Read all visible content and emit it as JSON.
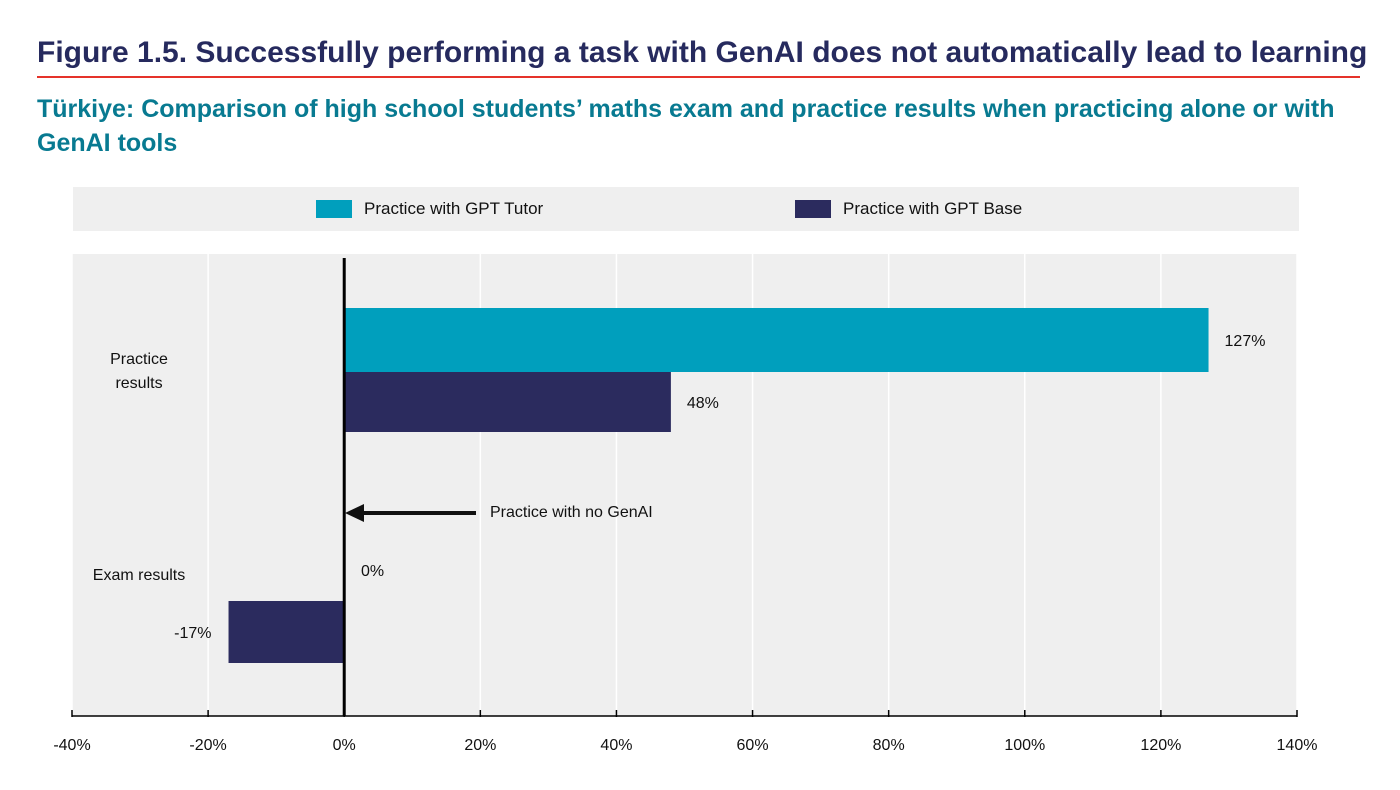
{
  "figure": {
    "title": "Figure 1.5. Successfully performing a task with GenAI does not automatically lead to learning",
    "subtitle": "Türkiye: Comparison of high school students’ maths exam and practice results when practicing alone or with GenAI tools"
  },
  "colors": {
    "tutor": "#009fbd",
    "base": "#2b2b5e",
    "plot_bg": "#efefef",
    "title": "#262a5e",
    "subtitle": "#087a91",
    "rule": "#e5332a"
  },
  "chart_data": {
    "type": "bar",
    "orientation": "horizontal",
    "categories": [
      "Practice results",
      "Exam results"
    ],
    "series": [
      {
        "name": "Practice with GPT Tutor",
        "values": [
          127,
          0
        ]
      },
      {
        "name": "Practice with GPT Base",
        "values": [
          48,
          -17
        ]
      }
    ],
    "data_labels": [
      {
        "category": "Practice results",
        "series": "Practice with GPT Tutor",
        "text": "127%"
      },
      {
        "category": "Practice results",
        "series": "Practice with GPT Base",
        "text": "48%"
      },
      {
        "category": "Exam results",
        "series": "Practice with GPT Tutor",
        "text": "0%"
      },
      {
        "category": "Exam results",
        "series": "Practice with GPT Base",
        "text": "-17%"
      }
    ],
    "xlim": [
      -40,
      140
    ],
    "xticks": [
      -40,
      -20,
      0,
      20,
      40,
      60,
      80,
      100,
      120,
      140
    ],
    "xtick_labels": [
      "-40%",
      "-20%",
      "0%",
      "20%",
      "40%",
      "60%",
      "80%",
      "100%",
      "120%",
      "140%"
    ],
    "annotation": {
      "text": "Practice with no GenAI",
      "points_to_x": 0
    },
    "grid": "vertical",
    "legend_position": "top"
  }
}
